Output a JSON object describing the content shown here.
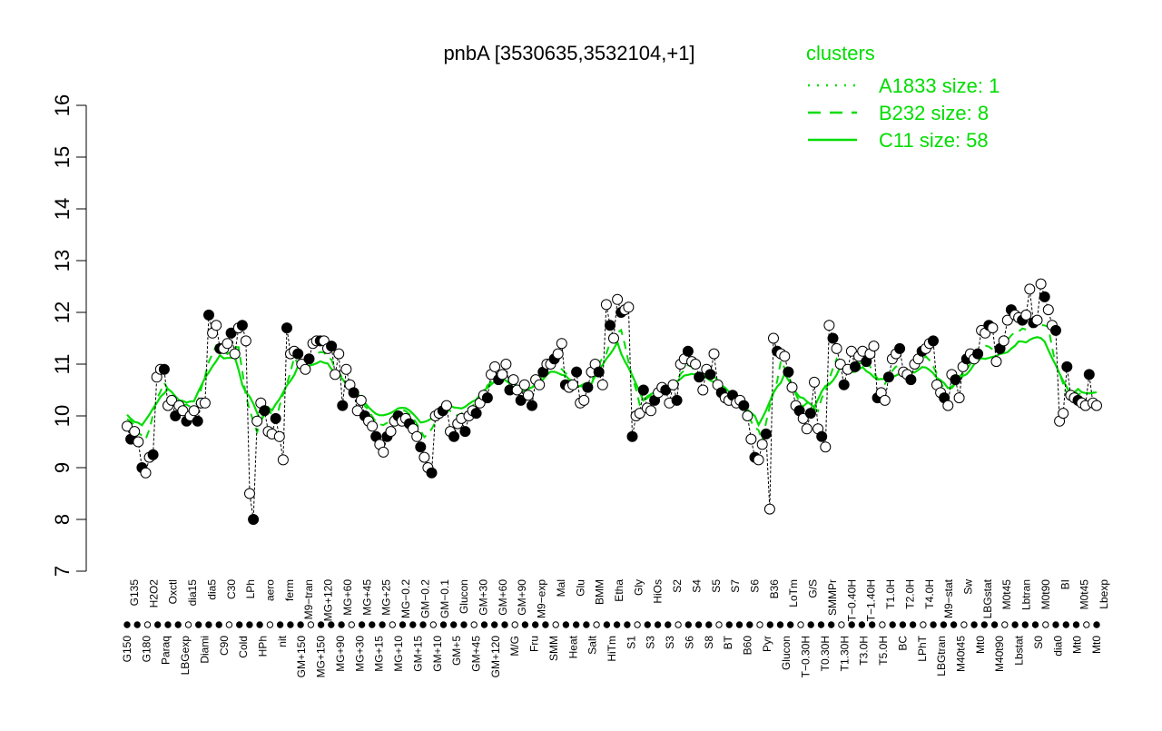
{
  "chart_data": {
    "type": "line",
    "title": "pnbA [3530635,3532104,+1]",
    "xlabel": "",
    "ylabel": "",
    "ylim": [
      7,
      16
    ],
    "yticks": [
      7,
      8,
      9,
      10,
      11,
      12,
      13,
      14,
      15,
      16
    ],
    "grid": false,
    "legend_position": "top-right",
    "legend": {
      "title": "clusters",
      "entries": [
        {
          "label": "A1833 size: 1",
          "style": "dotted"
        },
        {
          "label": "B232 size: 8",
          "style": "dashed"
        },
        {
          "label": "C11 size: 58",
          "style": "solid"
        }
      ]
    },
    "colors": {
      "cluster": "#00dd00",
      "points": "#000000",
      "axis": "#000000"
    },
    "x_tick_labels_upper": [
      "G135",
      "H2O2",
      "Oxctl",
      "dia15",
      "dia5",
      "C30",
      "LPh",
      "aero",
      "ferm",
      "M9−tran",
      "MG+120",
      "MG+60",
      "MG+45",
      "MG+25",
      "MG−0.2",
      "GM−0.2",
      "GM−0.1",
      "Glucon",
      "GM+30",
      "GM+60",
      "GM+90",
      "M9−exp",
      "Mal",
      "Glu",
      "BMM",
      "Etha",
      "Gly",
      "HiOs",
      "S2",
      "S4",
      "S5",
      "S7",
      "S6",
      "B36",
      "LoTm",
      "G/S",
      "SMMPr",
      "T−0.40H",
      "T−1.40H",
      "T1.0H",
      "T2.0H",
      "T4.0H",
      "M9−stat",
      "Sw",
      "LBGstat",
      "M0t45",
      "Lbtran",
      "M0t90",
      "BI",
      "M0t45",
      "Lbexp"
    ],
    "x_tick_labels_lower": [
      "G150",
      "G180",
      "Paraq",
      "LBGexp",
      "Diami",
      "C90",
      "Cold",
      "HPh",
      "nit",
      "GM+150",
      "MG+150",
      "MG+90",
      "MG+30",
      "MG+15",
      "MG+10",
      "GM+15",
      "GM+10",
      "GM+5",
      "GM+45",
      "GM+120",
      "M/G",
      "Fru",
      "SMM",
      "Heat",
      "Salt",
      "HiTm",
      "S1",
      "S3",
      "S3",
      "S6",
      "S8",
      "BT",
      "B60",
      "Pyr",
      "Glucon",
      "T−0.30H",
      "T0.30H",
      "T1.30H",
      "T3.0H",
      "T5.0H",
      "BC",
      "LPhT",
      "LBGtran",
      "M40t45",
      "Mt0",
      "M40t90",
      "Lbstat",
      "S0",
      "dia0",
      "Mt0",
      "Mt0"
    ],
    "point_values": [
      9.8,
      9.55,
      9.7,
      9.5,
      9.0,
      8.9,
      9.2,
      9.25,
      10.75,
      10.9,
      10.9,
      10.2,
      10.3,
      10.0,
      10.2,
      10.1,
      9.9,
      10.0,
      10.1,
      9.9,
      10.25,
      10.25,
      11.95,
      11.6,
      11.75,
      11.3,
      11.3,
      11.4,
      11.6,
      11.2,
      11.7,
      11.75,
      11.45,
      8.5,
      8.0,
      9.9,
      10.25,
      10.1,
      9.7,
      9.65,
      9.95,
      9.6,
      9.15,
      11.7,
      11.2,
      11.25,
      11.2,
      11.0,
      10.9,
      11.1,
      11.4,
      11.45,
      11.45,
      11.45,
      11.3,
      11.35,
      10.8,
      11.2,
      10.2,
      10.9,
      10.6,
      10.45,
      10.1,
      10.3,
      10.0,
      9.9,
      9.8,
      9.6,
      9.45,
      9.3,
      9.6,
      9.7,
      9.9,
      10.0,
      9.9,
      9.95,
      9.85,
      9.75,
      9.6,
      9.4,
      9.2,
      9.0,
      8.9,
      10.0,
      10.05,
      10.1,
      10.2,
      9.7,
      9.6,
      9.85,
      9.95,
      9.7,
      10.0,
      10.1,
      10.05,
      10.25,
      10.4,
      10.35,
      10.8,
      10.95,
      10.7,
      10.8,
      11.0,
      10.5,
      10.7,
      10.5,
      10.3,
      10.6,
      10.4,
      10.2,
      10.7,
      10.6,
      10.85,
      11.0,
      11.0,
      11.1,
      11.2,
      11.4,
      10.6,
      10.55,
      10.6,
      10.85,
      10.25,
      10.3,
      10.55,
      10.85,
      11.0,
      10.85,
      10.6,
      12.15,
      11.75,
      11.5,
      12.25,
      12.0,
      12.05,
      12.1,
      9.6,
      10.0,
      10.05,
      10.5,
      10.15,
      10.1,
      10.3,
      10.45,
      10.55,
      10.5,
      10.25,
      10.6,
      10.3,
      11.0,
      11.1,
      11.25,
      11.05,
      11.0,
      10.75,
      10.5,
      10.9,
      10.8,
      11.2,
      10.6,
      10.45,
      10.35,
      10.3,
      10.4,
      10.25,
      10.3,
      10.2,
      10.0,
      9.55,
      9.2,
      9.15,
      9.45,
      9.65,
      8.2,
      11.5,
      11.25,
      11.2,
      11.15,
      10.85,
      10.55,
      10.2,
      10.1,
      9.95,
      9.75,
      10.05,
      10.65,
      9.75,
      9.6,
      9.4,
      11.75,
      11.5,
      11.3,
      11.0,
      10.6,
      10.9,
      11.25,
      10.95,
      11.15,
      11.25,
      11.05,
      11.2,
      11.35,
      10.35,
      10.45,
      10.3,
      10.75,
      11.1,
      11.2,
      11.3,
      10.85,
      10.8,
      10.7,
      11.0,
      11.1,
      11.25,
      11.3,
      11.4,
      11.45,
      10.6,
      10.45,
      10.35,
      10.2,
      10.8,
      10.7,
      10.35,
      10.95,
      11.1,
      11.2,
      11.1,
      11.2,
      11.65,
      11.6,
      11.75,
      11.7,
      11.05,
      11.3,
      11.45,
      11.85,
      12.05,
      11.95,
      11.9,
      11.85,
      11.95,
      12.45,
      11.8,
      11.85,
      12.55,
      12.3,
      12.05,
      11.75,
      11.65,
      9.9,
      10.05,
      10.95,
      10.4,
      10.35,
      10.3,
      10.25,
      10.2,
      10.8,
      10.25,
      10.2
    ]
  }
}
